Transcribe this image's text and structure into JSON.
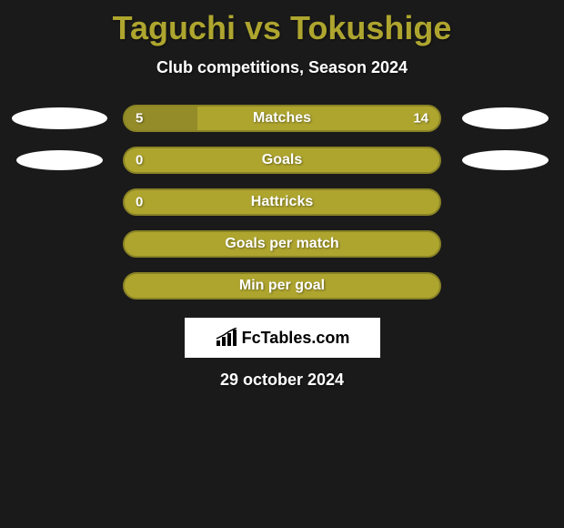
{
  "title": "Taguchi vs Tokushige",
  "subtitle": "Club competitions, Season 2024",
  "rows": [
    {
      "label": "Matches",
      "left_value": "5",
      "right_value": "14",
      "fill_left_pct": 23,
      "has_left_avatar": true,
      "has_right_avatar": true,
      "avatar_left_class": "row1-left",
      "avatar_right_class": "row1-right"
    },
    {
      "label": "Goals",
      "left_value": "0",
      "right_value": "",
      "fill_left_pct": 0,
      "has_left_avatar": true,
      "has_right_avatar": true,
      "avatar_left_class": "row2-left",
      "avatar_right_class": "row2-right"
    },
    {
      "label": "Hattricks",
      "left_value": "0",
      "right_value": "",
      "fill_left_pct": 0,
      "has_left_avatar": false,
      "has_right_avatar": false
    },
    {
      "label": "Goals per match",
      "left_value": "",
      "right_value": "",
      "fill_left_pct": 0,
      "has_left_avatar": false,
      "has_right_avatar": false
    },
    {
      "label": "Min per goal",
      "left_value": "",
      "right_value": "",
      "fill_left_pct": 0,
      "has_left_avatar": false,
      "has_right_avatar": false
    }
  ],
  "logo_text": "FcTables.com",
  "date_text": "29 october 2024",
  "colors": {
    "background": "#1a1a1a",
    "accent": "#aea52f",
    "bar_border": "#8a8325",
    "text": "#ffffff",
    "fill_overlay": "rgba(0,0,0,0.15)"
  }
}
